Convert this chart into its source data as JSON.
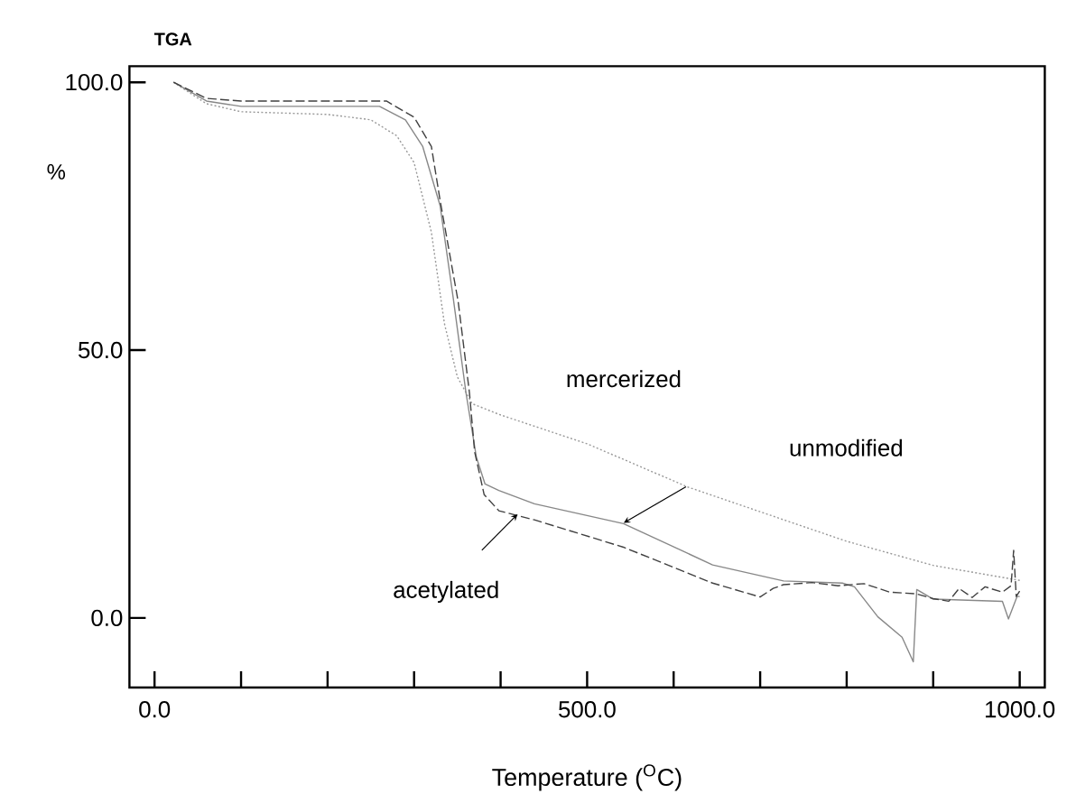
{
  "chart_data": {
    "type": "line",
    "title": "TGA",
    "xlabel": "Temperature ($^{O}$C)",
    "ylabel": "%",
    "xlim": [
      -29,
      1029
    ],
    "ylim": [
      -13,
      103
    ],
    "xticks": [
      {
        "value": 0,
        "label": "0.0"
      },
      {
        "value": 100,
        "label": null
      },
      {
        "value": 200,
        "label": null
      },
      {
        "value": 300,
        "label": null
      },
      {
        "value": 400,
        "label": null
      },
      {
        "value": 500,
        "label": "500.0"
      },
      {
        "value": 600,
        "label": null
      },
      {
        "value": 700,
        "label": null
      },
      {
        "value": 800,
        "label": null
      },
      {
        "value": 900,
        "label": null
      },
      {
        "value": 1000,
        "label": "1000.0"
      }
    ],
    "yticks": [
      {
        "value": 0,
        "label": "0.0"
      },
      {
        "value": 50,
        "label": "50.0"
      },
      {
        "value": 100,
        "label": "100.0"
      }
    ],
    "grid": false,
    "series": [
      {
        "color": "#999999",
        "line_style": "dotted",
        "x": [
          22,
          60,
          100,
          200,
          250,
          280,
          300,
          320,
          335,
          350,
          367,
          398,
          500,
          617,
          800,
          900,
          1000
        ],
        "values": [
          100,
          96,
          94.5,
          94,
          93,
          90,
          85,
          72,
          55,
          45,
          40,
          38,
          32.5,
          24.4,
          14.3,
          9.8,
          7
        ]
      },
      {
        "color": "#888888",
        "line_style": "solid",
        "x": [
          22,
          60,
          100,
          200,
          260,
          290,
          310,
          330,
          345,
          360,
          372,
          382,
          398,
          439,
          542,
          645,
          727,
          795,
          809,
          836,
          864,
          877,
          881,
          900,
          980,
          987,
          997,
          1000
        ],
        "values": [
          100,
          96.5,
          95.5,
          95.5,
          95.5,
          93,
          88,
          77,
          60,
          42,
          30,
          25,
          23.8,
          21.3,
          17.6,
          9.9,
          6.9,
          6.5,
          5.8,
          0.2,
          -3.6,
          -8.2,
          5.3,
          3.5,
          3.1,
          -0.2,
          4,
          4
        ]
      },
      {
        "color": "#404040",
        "line_style": "dashed",
        "x": [
          22,
          60,
          100,
          200,
          268,
          300,
          320,
          330,
          351,
          364,
          370,
          381,
          398,
          439,
          542,
          645,
          700,
          715,
          727,
          760,
          790,
          820,
          850,
          880,
          900,
          918,
          930,
          945,
          960,
          980,
          990,
          993,
          996,
          1000
        ],
        "values": [
          100,
          97,
          96.5,
          96.5,
          96.5,
          93.5,
          88,
          78,
          59,
          42,
          31,
          23,
          20,
          18.3,
          13.2,
          6.5,
          3.9,
          5.5,
          6.2,
          6.6,
          6,
          6.4,
          4.8,
          4.5,
          3.6,
          3.1,
          5.5,
          3.8,
          5.8,
          4.8,
          6,
          12.6,
          4,
          5
        ]
      }
    ],
    "annotations": [
      "mercerized",
      "unmodified",
      "acetylated"
    ]
  }
}
